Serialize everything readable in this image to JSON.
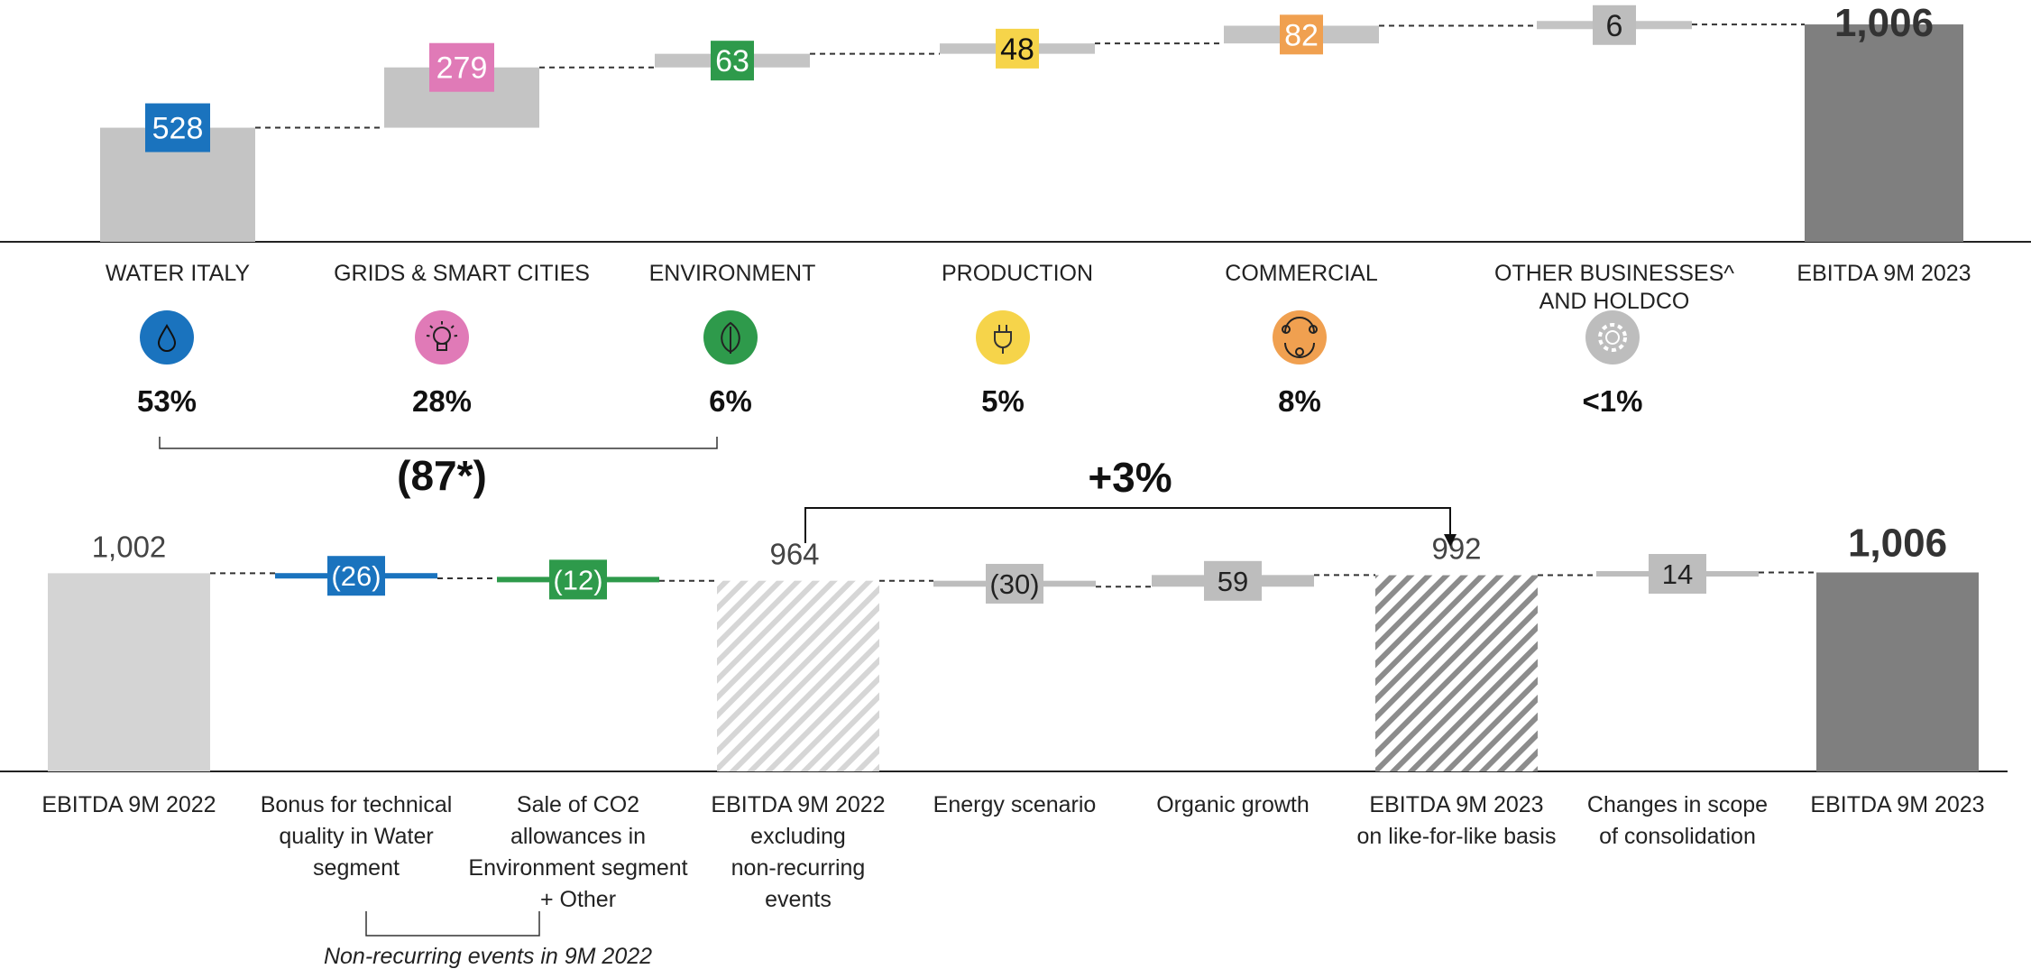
{
  "chart_data": [
    {
      "type": "bar",
      "subtype": "waterfall",
      "categories": [
        "WATER ITALY",
        "GRIDS & SMART CITIES",
        "ENVIRONMENT",
        "PRODUCTION",
        "COMMERCIAL",
        "OTHER BUSINESSES^\nAND HOLDCO",
        "EBITDA 9M 2023"
      ],
      "values": [
        528,
        279,
        63,
        48,
        82,
        6,
        1006
      ],
      "value_labels": [
        "528",
        "279",
        "63",
        "48",
        "82",
        "6",
        "1,006"
      ],
      "shares": [
        "53%",
        "28%",
        "6%",
        "5%",
        "8%",
        "<1%",
        ""
      ],
      "icons": [
        "water-drop-icon",
        "lightbulb-icon",
        "leaf-icon",
        "plug-icon",
        "people-cycle-icon",
        "gear-icon",
        ""
      ],
      "colors": [
        "#1a73be",
        "#e07ab7",
        "#2e9a4b",
        "#f6d44a",
        "#f0a050",
        "#bdbdbd",
        "#7f7f7f"
      ],
      "bracket_label": "(87*)"
    },
    {
      "type": "bar",
      "subtype": "waterfall",
      "categories": [
        "EBITDA 9M 2022",
        "Bonus for technical quality in Water segment",
        "Sale of CO2 allowances in Environment segment + Other",
        "EBITDA 9M 2022 excluding non-recurring events",
        "Energy scenario",
        "Organic growth",
        "EBITDA 9M 2023 on like-for-like basis",
        "Changes in scope of consolidation",
        "EBITDA 9M 2023"
      ],
      "values": [
        1002,
        -26,
        -12,
        964,
        -30,
        59,
        992,
        14,
        1006
      ],
      "value_labels": [
        "1,002",
        "(26)",
        "(12)",
        "964",
        "(30)",
        "59",
        "992",
        "14",
        "1,006"
      ],
      "growth_label": "+3%",
      "footnote": "Non-recurring events in 9M 2022",
      "colors": {
        "base": "#d4d4d4",
        "water": "#1a73be",
        "environment": "#2e9a4b",
        "delta": "#bdbdbd",
        "final": "#7f7f7f",
        "hatch": "#a8a8a8"
      }
    }
  ]
}
